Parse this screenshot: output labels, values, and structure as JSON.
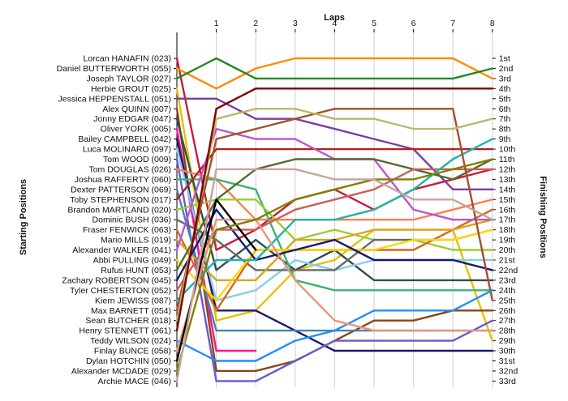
{
  "chart_data": {
    "type": "line",
    "title": "",
    "xlabel": "Laps",
    "ylabel_left": "Starting Positions",
    "ylabel_right": "Finishing Positions",
    "x_ticks": [
      "1",
      "2",
      "3",
      "4",
      "5",
      "6",
      "7",
      "8"
    ],
    "y_max_position": 33,
    "finishing_labels": [
      "1st",
      "2nd",
      "3rd",
      "4th",
      "5th",
      "6th",
      "7th",
      "8th",
      "9th",
      "10th",
      "11th",
      "12th",
      "13th",
      "14th",
      "15th",
      "16th",
      "17th",
      "18th",
      "19th",
      "20th",
      "21st",
      "22nd",
      "23rd",
      "24th",
      "25th",
      "26th",
      "27th",
      "28th",
      "29th",
      "30th",
      "31st",
      "32nd",
      "33rd"
    ],
    "grid": "vertical",
    "series": [
      {
        "name": "Lorcan HANAFIN (023)",
        "color": "#c41e3a",
        "positions": [
          1,
          20,
          18,
          15,
          14,
          16,
          14,
          13,
          12
        ]
      },
      {
        "name": "Daniel BUTTERWORTH (055)",
        "color": "#ff8c00",
        "positions": [
          2,
          4,
          2,
          1,
          1,
          1,
          1,
          1,
          3
        ]
      },
      {
        "name": "Joseph TAYLOR (027)",
        "color": "#228b22",
        "positions": [
          3,
          1,
          3,
          3,
          3,
          3,
          3,
          3,
          2
        ]
      },
      {
        "name": "Herbie GROUT (025)",
        "color": "#e6c200",
        "positions": [
          4,
          27,
          26,
          22,
          21,
          18,
          18,
          18,
          29
        ]
      },
      {
        "name": "Jessica HEPPENSTALL (051)",
        "color": "#7b3f9e",
        "positions": [
          5,
          5,
          7,
          7,
          8,
          9,
          10,
          14,
          14
        ]
      },
      {
        "name": "Alex QUINN (007)",
        "color": "#8b4513",
        "positions": [
          6,
          32,
          32,
          31,
          29,
          27,
          27,
          26,
          26
        ]
      },
      {
        "name": "Jonny EDGAR (047)",
        "color": "#2f4f4f",
        "positions": [
          7,
          22,
          19,
          22,
          20,
          23,
          23,
          23,
          23
        ]
      },
      {
        "name": "Oliver YORK (005)",
        "color": "#ff1493",
        "positions": [
          8,
          30,
          30
        ]
      },
      {
        "name": "Bailey CAMPBELL (042)",
        "color": "#1a1a6e",
        "positions": [
          9,
          26,
          26,
          28,
          30,
          30,
          30,
          30,
          30
        ]
      },
      {
        "name": "Luca MOLINARO (097)",
        "color": "#87ceeb",
        "positions": [
          10,
          25,
          24,
          21,
          22,
          21,
          21,
          21,
          21
        ]
      },
      {
        "name": "Tom WOOD (009)",
        "color": "#6a5acd",
        "positions": [
          11,
          33,
          33,
          31,
          29,
          29,
          29,
          29,
          27
        ]
      },
      {
        "name": "Tom DOUGLAS (026)",
        "color": "#ff7f50",
        "positions": [
          12,
          13,
          17,
          17,
          17,
          17,
          17,
          16,
          15
        ]
      },
      {
        "name": "Joshua RAFFERTY (060)",
        "color": "#3cb371",
        "positions": [
          13,
          13,
          14,
          23,
          24,
          24,
          24,
          24,
          24
        ]
      },
      {
        "name": "Dexter PATTERSON (069)",
        "color": "#4682b4",
        "positions": [
          14,
          28,
          28,
          28,
          28,
          28,
          28,
          28,
          28
        ]
      },
      {
        "name": "Toby STEPHENSON (017)",
        "color": "#b22222",
        "positions": [
          15,
          10,
          10,
          10,
          10,
          10,
          10,
          10,
          10
        ]
      },
      {
        "name": "Brandon MARTLAND (020)",
        "color": "#9acd32",
        "positions": [
          16,
          15,
          15,
          19,
          18,
          19,
          19,
          20,
          20
        ]
      },
      {
        "name": "Dominic BUSH (036)",
        "color": "#696969",
        "positions": [
          17,
          19,
          22,
          22,
          22,
          19,
          19,
          19,
          18
        ]
      },
      {
        "name": "Fraser FENWICK (063)",
        "color": "#d2691e",
        "positions": [
          18,
          26,
          20,
          20,
          20,
          20,
          20,
          18,
          16
        ]
      },
      {
        "name": "Mario MILLS (019)",
        "color": "#daa520",
        "positions": [
          19,
          23,
          23,
          19,
          19,
          18,
          18,
          18,
          17
        ]
      },
      {
        "name": "Alexander WALKER (041)",
        "color": "#ba55d3",
        "positions": [
          20,
          8,
          9,
          9,
          11,
          11,
          16,
          17,
          17
        ]
      },
      {
        "name": "Abbi PULLING (049)",
        "color": "#ffd700",
        "positions": [
          21,
          25,
          20,
          20,
          20,
          20,
          19,
          19,
          18
        ]
      },
      {
        "name": "Rufus HUNT (053)",
        "color": "#556b2f",
        "positions": [
          22,
          15,
          12,
          11,
          11,
          11,
          12,
          13,
          11
        ]
      },
      {
        "name": "Zachary ROBERTSON (045)",
        "color": "#191970",
        "positions": [
          23,
          16,
          21,
          20,
          19,
          21,
          21,
          21,
          22
        ]
      },
      {
        "name": "Tyler CHESTERTON (052)",
        "color": "#cd5c5c",
        "positions": [
          24,
          18,
          18,
          16,
          15,
          14,
          12,
          12,
          12
        ]
      },
      {
        "name": "Kiern JEWISS (087)",
        "color": "#20b2aa",
        "positions": [
          25,
          21,
          21,
          17,
          17,
          16,
          14,
          11,
          9
        ]
      },
      {
        "name": "Max BARNETT (054)",
        "color": "#a0522d",
        "positions": [
          26,
          9,
          8,
          7,
          6,
          6,
          6,
          6,
          25
        ]
      },
      {
        "name": "Sean BUTCHER (018)",
        "color": "#bdb76b",
        "positions": [
          27,
          7,
          6,
          6,
          7,
          7,
          8,
          8,
          7
        ]
      },
      {
        "name": "Henry STENNETT (061)",
        "color": "#800000",
        "positions": [
          28,
          6,
          4,
          4,
          4,
          4,
          4,
          4,
          4
        ]
      },
      {
        "name": "Teddy WILSON (024)",
        "color": "#1e90ff",
        "positions": [
          29,
          31,
          31,
          29,
          28,
          26,
          26,
          26,
          24
        ]
      },
      {
        "name": "Finlay BUNCE (058)",
        "color": "#e9967a",
        "positions": [
          30,
          17,
          17,
          23,
          27,
          28,
          28,
          28,
          28
        ]
      },
      {
        "name": "Dylan HOTCHIN (050)",
        "color": "#000000",
        "positions": [
          31,
          15,
          20
        ]
      },
      {
        "name": "Alexander MCDADE (029)",
        "color": "#808000",
        "positions": [
          32,
          18,
          17,
          15,
          14,
          13,
          13,
          12,
          11
        ]
      },
      {
        "name": "Archie MACE (046)",
        "color": "#c8a2a2",
        "positions": [
          33,
          12,
          12,
          12,
          13,
          13,
          15,
          15,
          17
        ]
      }
    ]
  }
}
